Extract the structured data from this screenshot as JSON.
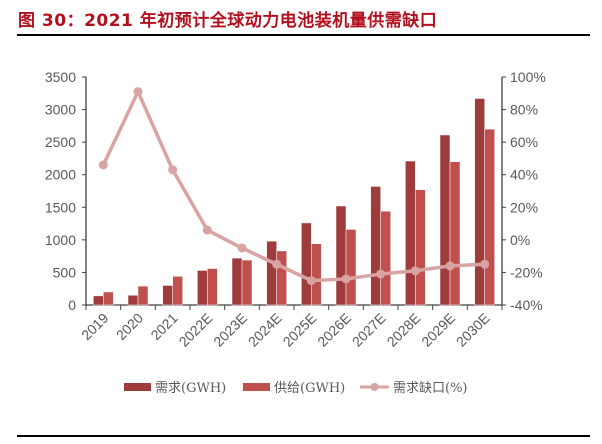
{
  "chart_data": {
    "type": "bar",
    "title": "图 30：2021 年初预计全球动力电池装机量供需缺口",
    "categories": [
      "2019",
      "2020",
      "2021",
      "2022E",
      "2023E",
      "2024E",
      "2025E",
      "2026E",
      "2027E",
      "2028E",
      "2029E",
      "2030E"
    ],
    "series": [
      {
        "name": "需求(GWH)",
        "type": "bar",
        "axis": "left",
        "color": "#9e3b3b",
        "values": [
          140,
          150,
          300,
          530,
          720,
          980,
          1260,
          1520,
          1820,
          2210,
          2610,
          3170
        ]
      },
      {
        "name": "供给(GWH)",
        "type": "bar",
        "axis": "left",
        "color": "#c0504d",
        "values": [
          200,
          290,
          440,
          560,
          690,
          830,
          940,
          1160,
          1440,
          1770,
          2200,
          2700
        ]
      },
      {
        "name": "需求缺口(%)",
        "type": "line",
        "axis": "right",
        "color": "#d9a3a3",
        "values": [
          46,
          91,
          43,
          6,
          -5,
          -15,
          -25,
          -24,
          -21,
          -19,
          -16,
          -15
        ]
      }
    ],
    "y_left": {
      "range": [
        0,
        3500
      ],
      "ticks": [
        "0",
        "500",
        "1000",
        "1500",
        "2000",
        "2500",
        "3000",
        "3500"
      ]
    },
    "y_right": {
      "range": [
        -40,
        100
      ],
      "ticks": [
        "-40%",
        "-20%",
        "0%",
        "20%",
        "40%",
        "60%",
        "80%",
        "100%"
      ]
    },
    "grid": false,
    "legend": "bottom"
  }
}
